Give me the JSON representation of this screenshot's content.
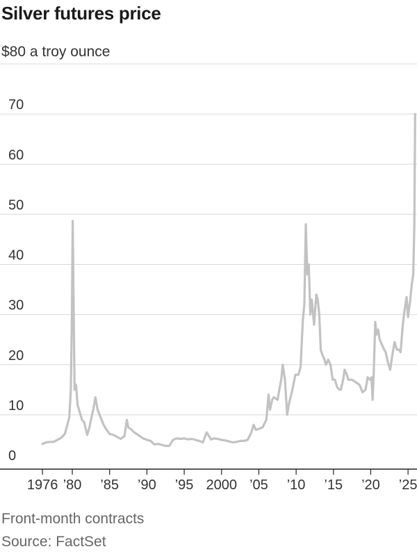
{
  "header": {
    "title": "Silver futures price",
    "unit_label": "$80 a troy ounce"
  },
  "footer": {
    "note": "Front-month contracts",
    "source": "Source: FactSet"
  },
  "colors": {
    "line": "#c2c2c2",
    "gridline": "#d8d8d8",
    "axis": "#222222"
  },
  "chart_data": {
    "type": "line",
    "title": "Silver futures price",
    "ylabel": "$80 a troy ounce",
    "xlabel": "",
    "ylim": [
      0,
      80
    ],
    "xlim": [
      1974.5,
      2026.2
    ],
    "grid": true,
    "y_ticks": [
      0,
      10,
      20,
      30,
      40,
      50,
      60,
      70
    ],
    "y_tick_labels": [
      "0",
      "10",
      "20",
      "30",
      "40",
      "50",
      "60",
      "70"
    ],
    "x_ticks": [
      1976,
      1980,
      1985,
      1990,
      1995,
      2000,
      2005,
      2010,
      2015,
      2020,
      2025
    ],
    "x_tick_labels": [
      "1976",
      "’80",
      "’85",
      "’90",
      "’95",
      "2000",
      "’05",
      "’10",
      "’15",
      "’20",
      "’25"
    ],
    "series": [
      {
        "x": [
          1976.0,
          1976.5,
          1977.0,
          1977.5,
          1978.0,
          1978.5,
          1979.0,
          1979.3,
          1979.6,
          1979.8,
          1979.95,
          1980.05,
          1980.15,
          1980.3,
          1980.5,
          1980.7,
          1981.0,
          1981.3,
          1981.6,
          1982.0,
          1982.3,
          1982.5,
          1982.8,
          1983.1,
          1983.4,
          1983.8,
          1984.2,
          1984.6,
          1985.0,
          1985.5,
          1986.0,
          1986.5,
          1987.0,
          1987.3,
          1987.5,
          1987.8,
          1988.3,
          1988.8,
          1989.5,
          1990.0,
          1990.5,
          1991.0,
          1991.5,
          1992.0,
          1992.5,
          1993.0,
          1993.5,
          1994.0,
          1994.5,
          1995.0,
          1995.5,
          1996.0,
          1996.5,
          1997.0,
          1997.5,
          1998.0,
          1998.3,
          1998.6,
          1999.0,
          1999.5,
          2000.0,
          2000.5,
          2001.0,
          2001.5,
          2002.0,
          2002.5,
          2003.0,
          2003.5,
          2004.0,
          2004.3,
          2004.6,
          2005.0,
          2005.5,
          2006.0,
          2006.3,
          2006.5,
          2006.8,
          2007.0,
          2007.5,
          2008.0,
          2008.2,
          2008.5,
          2008.8,
          2009.0,
          2009.5,
          2009.9,
          2010.3,
          2010.6,
          2010.9,
          2011.1,
          2011.3,
          2011.5,
          2011.7,
          2011.9,
          2012.1,
          2012.4,
          2012.7,
          2012.9,
          2013.1,
          2013.3,
          2013.5,
          2013.8,
          2014.0,
          2014.3,
          2014.6,
          2014.9,
          2015.2,
          2015.5,
          2015.8,
          2016.0,
          2016.3,
          2016.5,
          2016.8,
          2017.0,
          2017.5,
          2018.0,
          2018.5,
          2018.9,
          2019.3,
          2019.6,
          2019.9,
          2020.1,
          2020.25,
          2020.4,
          2020.6,
          2020.8,
          2021.0,
          2021.2,
          2021.5,
          2021.8,
          2022.0,
          2022.3,
          2022.6,
          2022.9,
          2023.2,
          2023.5,
          2023.8,
          2024.0,
          2024.3,
          2024.5,
          2024.8,
          2025.0,
          2025.3,
          2025.5,
          2025.7,
          2025.85,
          2025.95
        ],
        "y": [
          4.2,
          4.5,
          4.6,
          4.6,
          5.0,
          5.4,
          6.2,
          7.8,
          9.5,
          15.0,
          30.0,
          48.7,
          35.0,
          15.0,
          16.0,
          12.0,
          10.5,
          9.0,
          8.5,
          6.0,
          7.5,
          9.0,
          11.0,
          13.5,
          11.0,
          9.5,
          8.0,
          7.0,
          6.2,
          6.0,
          5.6,
          5.2,
          5.8,
          9.0,
          7.5,
          7.2,
          6.5,
          6.0,
          5.3,
          5.0,
          4.8,
          4.1,
          4.2,
          4.0,
          3.8,
          3.8,
          5.0,
          5.3,
          5.2,
          5.3,
          5.1,
          5.2,
          5.0,
          4.8,
          4.5,
          6.5,
          5.8,
          5.1,
          5.3,
          5.2,
          5.0,
          4.9,
          4.7,
          4.5,
          4.6,
          4.8,
          4.8,
          5.0,
          6.5,
          8.0,
          7.0,
          7.2,
          7.5,
          9.0,
          14.0,
          11.0,
          13.0,
          13.5,
          13.0,
          17.0,
          20.0,
          17.0,
          10.0,
          12.0,
          15.0,
          18.0,
          18.0,
          19.5,
          29.0,
          32.0,
          48.0,
          38.0,
          40.0,
          30.0,
          33.0,
          28.0,
          34.0,
          33.0,
          30.0,
          23.0,
          22.0,
          21.0,
          20.0,
          21.0,
          20.0,
          17.0,
          17.0,
          15.5,
          15.0,
          15.0,
          17.0,
          19.0,
          18.0,
          17.0,
          17.0,
          16.5,
          16.0,
          14.5,
          15.0,
          17.5,
          17.0,
          17.5,
          13.0,
          18.0,
          28.5,
          26.0,
          27.0,
          25.0,
          24.0,
          23.0,
          22.5,
          20.5,
          19.0,
          22.0,
          24.5,
          23.0,
          23.0,
          22.5,
          28.0,
          30.5,
          33.5,
          29.5,
          33.0,
          36.0,
          38.0,
          48.0,
          70.0
        ]
      }
    ]
  }
}
